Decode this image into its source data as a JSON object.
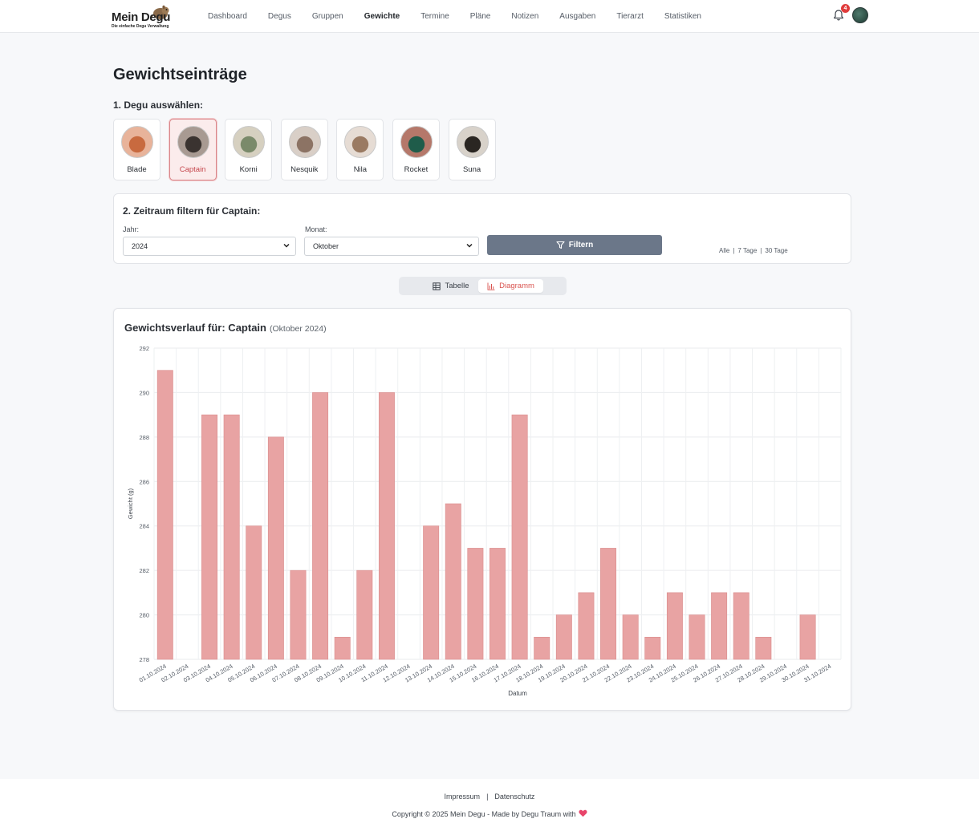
{
  "navbar": {
    "logo_text": "Mein Degu",
    "logo_subtitle": "Die einfache Degu Verwaltung",
    "links": [
      {
        "label": "Dashboard",
        "active": false
      },
      {
        "label": "Degus",
        "active": false
      },
      {
        "label": "Gruppen",
        "active": false
      },
      {
        "label": "Gewichte",
        "active": true
      },
      {
        "label": "Termine",
        "active": false
      },
      {
        "label": "Pläne",
        "active": false
      },
      {
        "label": "Notizen",
        "active": false
      },
      {
        "label": "Ausgaben",
        "active": false
      },
      {
        "label": "Tierarzt",
        "active": false
      },
      {
        "label": "Statistiken",
        "active": false
      }
    ],
    "notification_count": "4",
    "icons": {
      "bell": "bell-icon",
      "avatar": "user-avatar"
    }
  },
  "page": {
    "title": "Gewichtseinträge",
    "step1_label": "1. Degu auswählen:"
  },
  "degus": [
    {
      "name": "Blade",
      "selected": false,
      "photo_colors": [
        "#c86a3f",
        "#e8b39a"
      ]
    },
    {
      "name": "Captain",
      "selected": true,
      "photo_colors": [
        "#3a3330",
        "#a89a92"
      ]
    },
    {
      "name": "Korni",
      "selected": false,
      "photo_colors": [
        "#7a8a6a",
        "#d6d0c0"
      ]
    },
    {
      "name": "Nesquik",
      "selected": false,
      "photo_colors": [
        "#8c7364",
        "#d9cfc7"
      ]
    },
    {
      "name": "Nila",
      "selected": false,
      "photo_colors": [
        "#9a7a62",
        "#e6dcd4"
      ]
    },
    {
      "name": "Rocket",
      "selected": false,
      "photo_colors": [
        "#1f5c4a",
        "#b5786a"
      ]
    },
    {
      "name": "Suna",
      "selected": false,
      "photo_colors": [
        "#2a2622",
        "#d8d2ca"
      ]
    }
  ],
  "filter": {
    "title": "2. Zeitraum filtern für Captain:",
    "year_label": "Jahr:",
    "year_value": "2024",
    "month_label": "Monat:",
    "month_value": "Oktober",
    "button_label": "Filtern",
    "quick_links": [
      "Alle",
      "7 Tage",
      "30 Tage"
    ]
  },
  "view_toggle": {
    "table_label": "Tabelle",
    "chart_label": "Diagramm",
    "active": "chart"
  },
  "chart_card": {
    "heading": "Gewichtsverlauf für: Captain",
    "period": "(Oktober 2024)"
  },
  "chart_data": {
    "type": "bar",
    "title": "Gewichtsverlauf für: Captain",
    "xlabel": "Datum",
    "ylabel": "Gewicht (g)",
    "ylim": [
      278,
      292
    ],
    "yticks": [
      278,
      280,
      282,
      284,
      286,
      288,
      290,
      292
    ],
    "grid": true,
    "bar_color": "#e8a3a3",
    "categories": [
      "01.10.2024",
      "02.10.2024",
      "03.10.2024",
      "04.10.2024",
      "05.10.2024",
      "06.10.2024",
      "07.10.2024",
      "08.10.2024",
      "09.10.2024",
      "10.10.2024",
      "11.10.2024",
      "12.10.2024",
      "13.10.2024",
      "14.10.2024",
      "15.10.2024",
      "16.10.2024",
      "17.10.2024",
      "18.10.2024",
      "19.10.2024",
      "20.10.2024",
      "21.10.2024",
      "22.10.2024",
      "23.10.2024",
      "24.10.2024",
      "25.10.2024",
      "26.10.2024",
      "27.10.2024",
      "28.10.2024",
      "29.10.2024",
      "30.10.2024",
      "31.10.2024"
    ],
    "values": [
      291,
      null,
      289,
      289,
      284,
      288,
      282,
      290,
      279,
      282,
      290,
      null,
      284,
      285,
      283,
      283,
      289,
      279,
      280,
      281,
      283,
      280,
      279,
      281,
      280,
      281,
      281,
      279,
      null,
      280,
      null
    ]
  },
  "footer": {
    "links": [
      "Impressum",
      "Datenschutz"
    ],
    "copyright": "Copyright © 2025 Mein Degu - Made by Degu Traum with"
  }
}
